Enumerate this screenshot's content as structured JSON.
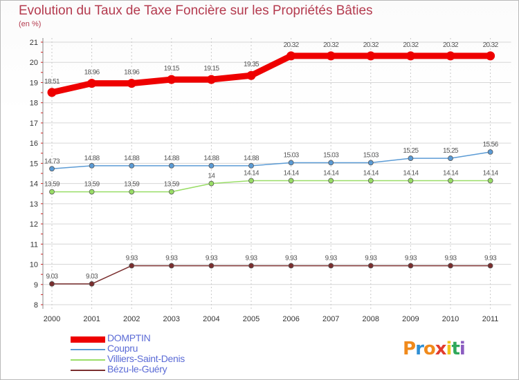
{
  "header": {
    "title": "Evolution du Taux de Taxe Foncière sur les Propriétés Bâties",
    "unit": "(en %)"
  },
  "logo": {
    "text": "Proxiti",
    "letters": [
      "P",
      "r",
      "o",
      "x",
      "i",
      "t",
      "i"
    ],
    "colors": [
      "#f08a1c",
      "#2f8fd4",
      "#f08a1c",
      "#e23c2e",
      "#f0c419",
      "#2fa85a",
      "#8b5cc0"
    ]
  },
  "chart_data": {
    "type": "line",
    "title": "Evolution du Taux de Taxe Foncière sur les Propriétés Bâties",
    "ylabel": "(en %)",
    "xlabel": "",
    "x": [
      "2000",
      "2001",
      "2002",
      "2003",
      "2004",
      "2005",
      "2006",
      "2007",
      "2008",
      "2009",
      "2010",
      "2011"
    ],
    "ylim": [
      8,
      21
    ],
    "yticks": [
      "8",
      "9",
      "10",
      "11",
      "12",
      "13",
      "14",
      "15",
      "16",
      "17",
      "18",
      "19",
      "20",
      "21"
    ],
    "grid": "horizontal",
    "legend_position": "bottom-left",
    "series": [
      {
        "name": "DOMPTIN",
        "color": "#ee0000",
        "weight": "bold",
        "values": [
          18.51,
          18.96,
          18.96,
          19.15,
          19.15,
          19.35,
          20.32,
          20.32,
          20.32,
          20.32,
          20.32,
          20.32
        ],
        "labels": [
          "18.51",
          "18.96",
          "18.96",
          "19.15",
          "19.15",
          "19.35",
          "20.32",
          "20.32",
          "20.32",
          "20.32",
          "20.32",
          "20.32"
        ]
      },
      {
        "name": "Coupru",
        "color": "#5b9bd5",
        "weight": "thin",
        "values": [
          14.73,
          14.88,
          14.88,
          14.88,
          14.88,
          14.88,
          15.03,
          15.03,
          15.03,
          15.25,
          15.25,
          15.56
        ],
        "labels": [
          "14.73",
          "14.88",
          "14.88",
          "14.88",
          "14.88",
          "14.88",
          "15.03",
          "15.03",
          "15.03",
          "15.25",
          "15.25",
          "15.56"
        ]
      },
      {
        "name": "Villiers-Saint-Denis",
        "color": "#99dd66",
        "weight": "thin",
        "values": [
          13.59,
          13.59,
          13.59,
          13.59,
          14,
          14.14,
          14.14,
          14.14,
          14.14,
          14.14,
          14.14,
          14.14
        ],
        "labels": [
          "13.59",
          "13.59",
          "13.59",
          "13.59",
          "14",
          "14.14",
          "14.14",
          "14.14",
          "14.14",
          "14.14",
          "14.14",
          "14.14"
        ]
      },
      {
        "name": "Bézu-le-Guéry",
        "color": "#7a2e2e",
        "weight": "thin",
        "values": [
          9.03,
          9.03,
          9.93,
          9.93,
          9.93,
          9.93,
          9.93,
          9.93,
          9.93,
          9.93,
          9.93,
          9.93
        ],
        "labels": [
          "9.03",
          "9.03",
          "9.93",
          "9.93",
          "9.93",
          "9.93",
          "9.93",
          "9.93",
          "9.93",
          "9.93",
          "9.93",
          "9.93"
        ]
      }
    ]
  }
}
